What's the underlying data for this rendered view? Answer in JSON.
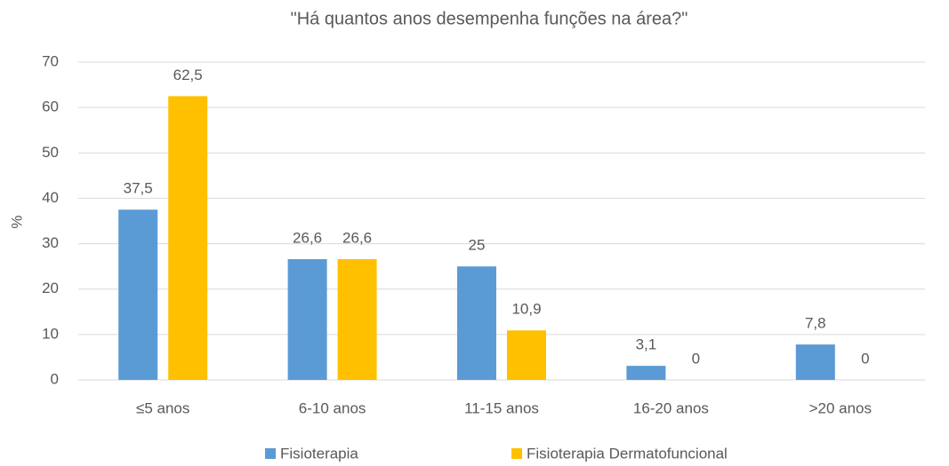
{
  "chart_data": {
    "type": "bar",
    "title": "\"Há quantos anos desempenha funções na área?\"",
    "y_label": "%",
    "categories": [
      "≤5 anos",
      "6-10 anos",
      "11-15 anos",
      "16-20 anos",
      ">20 anos"
    ],
    "series": [
      {
        "name": "Fisioterapia",
        "color": "#5b9bd5",
        "values": [
          37.5,
          26.6,
          25,
          3.1,
          7.8
        ],
        "value_labels": [
          "37,5",
          "26,6",
          "25",
          "3,1",
          "7,8"
        ]
      },
      {
        "name": "Fisioterapia Dermatofuncional",
        "color": "#ffc000",
        "values": [
          62.5,
          26.6,
          10.9,
          0,
          0
        ],
        "value_labels": [
          "62,5",
          "26,6",
          "10,9",
          "0",
          "0"
        ]
      }
    ],
    "ylim": [
      0,
      70
    ],
    "yticks": [
      0,
      10,
      20,
      30,
      40,
      50,
      60,
      70
    ],
    "grid": true,
    "legend": "bottom"
  }
}
